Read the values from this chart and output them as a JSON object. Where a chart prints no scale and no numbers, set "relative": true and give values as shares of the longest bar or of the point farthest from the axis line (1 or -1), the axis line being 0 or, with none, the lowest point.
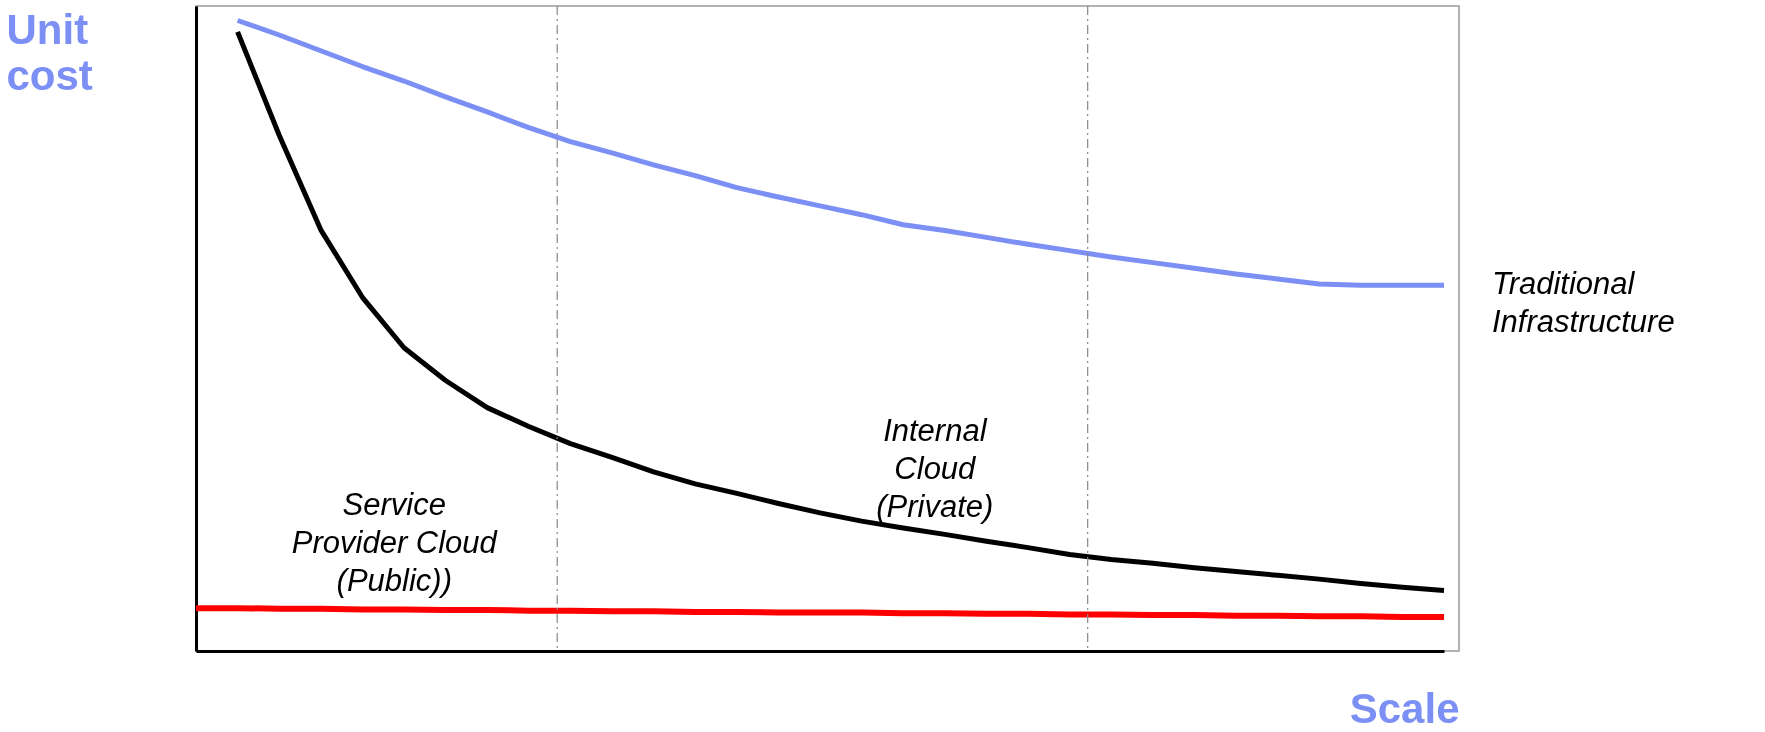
{
  "chart_data": {
    "type": "line",
    "relative": true,
    "xlabel": "Scale",
    "ylabel": "Unit\ncost",
    "categories": [
      null,
      null,
      null,
      null,
      null,
      null,
      null,
      null,
      null,
      null,
      null,
      null,
      null,
      null,
      null,
      null,
      null,
      null,
      null,
      null,
      null,
      null,
      null,
      null,
      null,
      null,
      null,
      null,
      null,
      null,
      null
    ],
    "series": [
      {
        "name": "Traditional\nInfrastructure",
        "color": "#7b8ff5",
        "values": [
          null,
          1.0,
          0.977,
          0.952,
          0.927,
          0.904,
          0.879,
          0.855,
          0.83,
          0.808,
          0.79,
          0.771,
          0.754,
          0.735,
          0.72,
          0.706,
          0.692,
          0.676,
          0.667,
          0.656,
          0.645,
          0.635,
          0.625,
          0.616,
          0.607,
          0.598,
          0.59,
          0.582,
          0.58,
          0.58,
          0.58
        ]
      },
      {
        "color": "#000000",
        "values": [
          null,
          0.982,
          0.818,
          0.668,
          0.561,
          0.481,
          0.429,
          0.386,
          0.356,
          0.329,
          0.307,
          0.284,
          0.265,
          0.25,
          0.234,
          0.219,
          0.206,
          0.195,
          0.185,
          0.174,
          0.164,
          0.153,
          0.145,
          0.139,
          0.132,
          0.126,
          0.12,
          0.114,
          0.107,
          0.101,
          0.096
        ]
      },
      {
        "color": "#ff0000",
        "values": [
          0.068,
          0.068,
          0.067,
          0.067,
          0.066,
          0.066,
          0.065,
          0.065,
          0.064,
          0.064,
          0.063,
          0.063,
          0.062,
          0.062,
          0.061,
          0.061,
          0.061,
          0.06,
          0.06,
          0.059,
          0.059,
          0.058,
          0.058,
          0.057,
          0.057,
          0.056,
          0.056,
          0.055,
          0.055,
          0.054,
          0.054
        ]
      }
    ],
    "annotations": [
      "Service\nProvider Cloud\n(Public))",
      "Internal\nCloud\n(Private)"
    ]
  }
}
